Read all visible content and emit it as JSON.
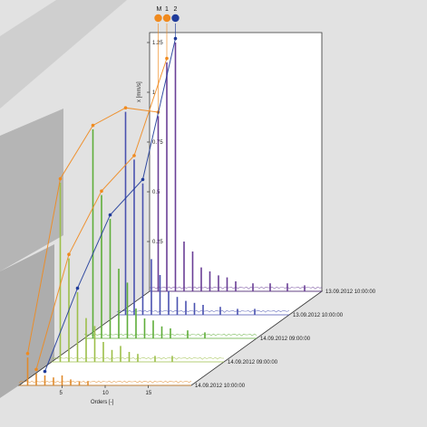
{
  "chart_data": {
    "type": "line",
    "subtype": "waterfall-spectrum-3d",
    "xlabel": "Orders [-]",
    "ylabel": "x [mm/s]",
    "x_ticks": [
      5,
      10,
      15
    ],
    "z_ticks": [
      0.25,
      0.5,
      0.75,
      1,
      1.25
    ],
    "legend": [
      {
        "label": "M",
        "color": "#f08a1e"
      },
      {
        "label": "1",
        "color": "#f08a1e"
      },
      {
        "label": "2",
        "color": "#1f3b9a"
      }
    ],
    "series": [
      {
        "name": "14.09.2012 10:00:00",
        "color": "#e08a2c",
        "peaks": [
          [
            1,
            0.14
          ],
          [
            2,
            0.06
          ],
          [
            3,
            0.05
          ],
          [
            4,
            0.04
          ],
          [
            5,
            0.05
          ],
          [
            6,
            0.03
          ],
          [
            7,
            0.02
          ],
          [
            8,
            0.02
          ]
        ]
      },
      {
        "name": "14.09.2012 09:00:00",
        "color": "#9dbf4a",
        "peaks": [
          [
            1,
            0.9
          ],
          [
            2,
            0.52
          ],
          [
            3,
            0.35
          ],
          [
            4,
            0.22
          ],
          [
            5,
            0.18
          ],
          [
            6,
            0.1
          ],
          [
            7,
            0.06
          ],
          [
            8,
            0.08
          ],
          [
            9,
            0.05
          ],
          [
            10,
            0.04
          ],
          [
            12,
            0.03
          ],
          [
            14,
            0.03
          ]
        ]
      },
      {
        "name": "14.09.2012 09:00:00",
        "color": "#5fae3a",
        "peaks": [
          [
            1,
            1.05
          ],
          [
            2,
            0.72
          ],
          [
            3,
            0.6
          ],
          [
            4,
            0.35
          ],
          [
            5,
            0.28
          ],
          [
            6,
            0.15
          ],
          [
            7,
            0.1
          ],
          [
            8,
            0.09
          ],
          [
            9,
            0.06
          ],
          [
            10,
            0.05
          ],
          [
            12,
            0.04
          ],
          [
            14,
            0.03
          ]
        ]
      },
      {
        "name": "13.09.2012 10:00:00",
        "color": "#4a52b0",
        "peaks": [
          [
            1,
            1.02
          ],
          [
            2,
            0.78
          ],
          [
            3,
            0.66
          ],
          [
            4,
            0.28
          ],
          [
            5,
            0.2
          ],
          [
            6,
            0.12
          ],
          [
            7,
            0.09
          ],
          [
            8,
            0.07
          ],
          [
            9,
            0.06
          ],
          [
            10,
            0.05
          ],
          [
            12,
            0.04
          ],
          [
            14,
            0.03
          ],
          [
            16,
            0.03
          ]
        ]
      },
      {
        "name": "13.09.2012 10:00:00",
        "color": "#6a3f96",
        "peaks": [
          [
            1,
            0.88
          ],
          [
            2,
            1.15
          ],
          [
            3,
            1.25
          ],
          [
            4,
            0.25
          ],
          [
            5,
            0.2
          ],
          [
            6,
            0.12
          ],
          [
            7,
            0.1
          ],
          [
            8,
            0.08
          ],
          [
            9,
            0.07
          ],
          [
            10,
            0.05
          ],
          [
            12,
            0.04
          ],
          [
            14,
            0.04
          ],
          [
            16,
            0.04
          ],
          [
            18,
            0.03
          ]
        ]
      }
    ],
    "trend_lines": [
      {
        "label": "M",
        "color": "#f08a1e",
        "order": 1
      },
      {
        "label": "1",
        "color": "#f08a1e",
        "order": 2
      },
      {
        "label": "2",
        "color": "#1f3b9a",
        "order": 3
      }
    ],
    "grid": false
  }
}
